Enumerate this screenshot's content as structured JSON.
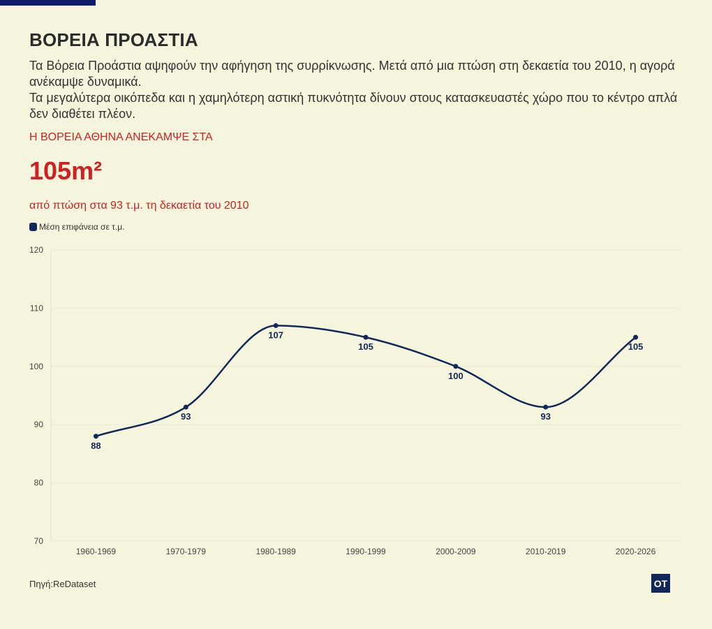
{
  "header": {
    "title": "ΒΟΡΕΙΑ ΠΡΟΑΣΤΙΑ",
    "description_line1": "Τα Βόρεια Προάστια αψηφούν την αφήγηση της συρρίκνωσης. Μετά από μια πτώση στη δεκαετία του 2010, η αγορά ανέκαμψε δυναμικά.",
    "description_line2": "Τα μεγαλύτερα οικόπεδα και η χαμηλότερη αστική πυκνότητα δίνουν στους κατασκευαστές χώρο που το κέντρο απλά δεν διαθέτει πλέον."
  },
  "highlight": {
    "kicker": "Η ΒΟΡΕΙΑ ΑΘΗΝΑ ΑΝΕΚΑΜΨΕ ΣΤΑ",
    "value": "105m²",
    "subtext": "από πτώση στα 93 τ.μ. τη δεκαετία του 2010"
  },
  "footer": {
    "source": "Πηγή:ReDataset",
    "logo_text": "OT"
  },
  "colors": {
    "background": "#f5f4dc",
    "accent_red": "#cc2222",
    "series": "#13285a",
    "top_bar": "#0f1b6b"
  },
  "chart_data": {
    "type": "line",
    "categories": [
      "1960-1969",
      "1970-1979",
      "1980-1989",
      "1990-1999",
      "2000-2009",
      "2010-2019",
      "2020-2026"
    ],
    "series": [
      {
        "name": "Μέση επιφάνεια σε τ.μ.",
        "values": [
          88,
          93,
          107,
          105,
          100,
          93,
          105
        ],
        "color": "#13285a"
      }
    ],
    "ylim": [
      70,
      120
    ],
    "yticks": [
      70,
      80,
      90,
      100,
      110,
      120
    ],
    "grid": true,
    "smooth": true,
    "data_labels": true,
    "legend_position": "top-left"
  }
}
